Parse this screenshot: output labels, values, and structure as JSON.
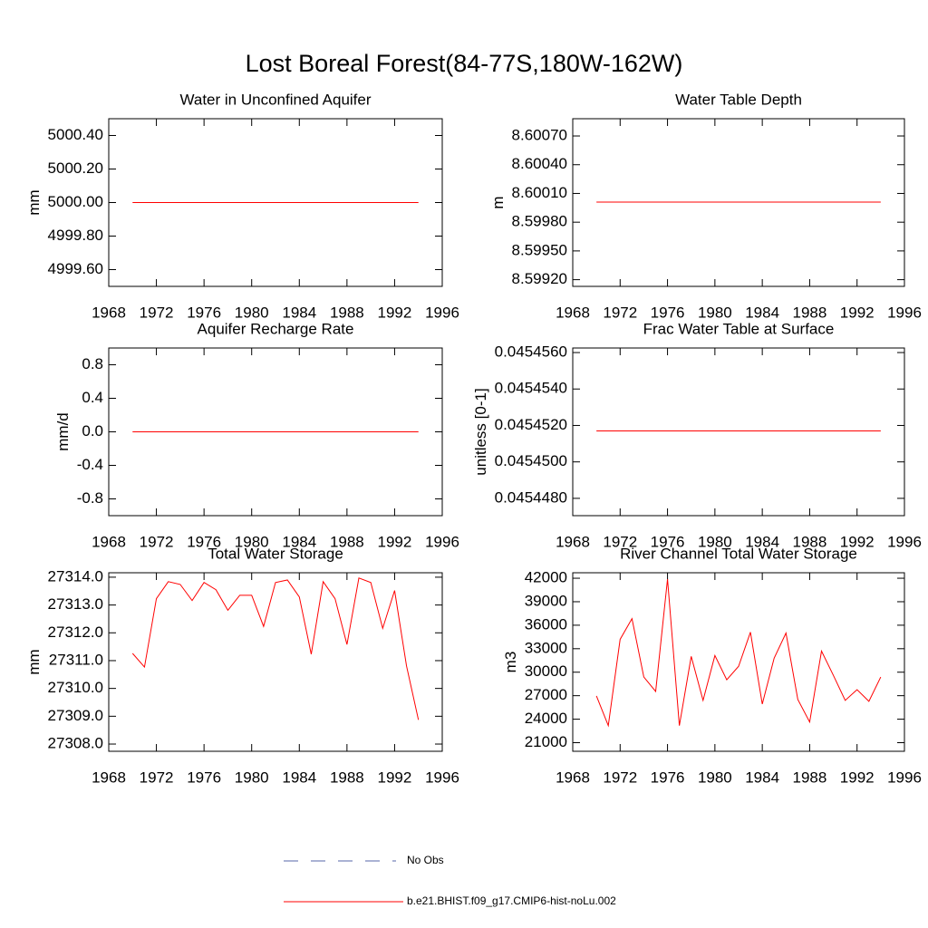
{
  "title": "Lost Boreal Forest(84-77S,180W-162W)",
  "legend": [
    {
      "name": "No Obs",
      "color": "#5566aa",
      "dashed": true
    },
    {
      "name": "b.e21.BHIST.f09_g17.CMIP6-hist-noLu.002",
      "color": "#ff0000",
      "dashed": false
    }
  ],
  "chart_data": [
    {
      "type": "line",
      "title": "Water in Unconfined Aquifer",
      "ylabel": "mm",
      "x": [
        1970,
        1971,
        1972,
        1973,
        1974,
        1975,
        1976,
        1977,
        1978,
        1979,
        1980,
        1981,
        1982,
        1983,
        1984,
        1985,
        1986,
        1987,
        1988,
        1989,
        1990,
        1991,
        1992,
        1993,
        1994
      ],
      "values": [
        5000,
        5000,
        5000,
        5000,
        5000,
        5000,
        5000,
        5000,
        5000,
        5000,
        5000,
        5000,
        5000,
        5000,
        5000,
        5000,
        5000,
        5000,
        5000,
        5000,
        5000,
        5000,
        5000,
        5000,
        5000
      ],
      "color": "#ff0000",
      "xlim": [
        1968,
        1996
      ],
      "xticks": [
        1968,
        1972,
        1976,
        1980,
        1984,
        1988,
        1992,
        1996
      ],
      "ylim": [
        4999.5,
        5000.5
      ],
      "yticks": [
        {
          "value": 5000.4,
          "label": "5000.40"
        },
        {
          "value": 5000.2,
          "label": "5000.20"
        },
        {
          "value": 5000,
          "label": "5000.00"
        },
        {
          "value": 4999.8,
          "label": "4999.80"
        },
        {
          "value": 4999.6,
          "label": "4999.60"
        }
      ]
    },
    {
      "type": "line",
      "title": "Water Table Depth",
      "ylabel": "m",
      "x": [
        1970,
        1971,
        1972,
        1973,
        1974,
        1975,
        1976,
        1977,
        1978,
        1979,
        1980,
        1981,
        1982,
        1983,
        1984,
        1985,
        1986,
        1987,
        1988,
        1989,
        1990,
        1991,
        1992,
        1993,
        1994
      ],
      "values": [
        8.60001,
        8.60001,
        8.60001,
        8.60001,
        8.60001,
        8.60001,
        8.60001,
        8.60001,
        8.60001,
        8.60001,
        8.60001,
        8.60001,
        8.60001,
        8.60001,
        8.60001,
        8.60001,
        8.60001,
        8.60001,
        8.60001,
        8.60001,
        8.60001,
        8.60001,
        8.60001,
        8.60001,
        8.60001
      ],
      "color": "#ff0000",
      "xlim": [
        1968,
        1996
      ],
      "xticks": [
        1968,
        1972,
        1976,
        1980,
        1984,
        1988,
        1992,
        1996
      ],
      "ylim": [
        8.59913,
        8.60088
      ],
      "yticks": [
        {
          "value": 8.6007,
          "label": "8.60070"
        },
        {
          "value": 8.6004,
          "label": "8.60040"
        },
        {
          "value": 8.6001,
          "label": "8.60010"
        },
        {
          "value": 8.5998,
          "label": "8.59980"
        },
        {
          "value": 8.5995,
          "label": "8.59950"
        },
        {
          "value": 8.5992,
          "label": "8.59920"
        }
      ]
    },
    {
      "type": "line",
      "title": "Aquifer Recharge Rate",
      "ylabel": "mm/d",
      "x": [
        1970,
        1971,
        1972,
        1973,
        1974,
        1975,
        1976,
        1977,
        1978,
        1979,
        1980,
        1981,
        1982,
        1983,
        1984,
        1985,
        1986,
        1987,
        1988,
        1989,
        1990,
        1991,
        1992,
        1993,
        1994
      ],
      "values": [
        0,
        0,
        0,
        0,
        0,
        0,
        0,
        0,
        0,
        0,
        0,
        0,
        0,
        0,
        0,
        0,
        0,
        0,
        0,
        0,
        0,
        0,
        0,
        0,
        0
      ],
      "color": "#ff0000",
      "xlim": [
        1968,
        1996
      ],
      "xticks": [
        1968,
        1972,
        1976,
        1980,
        1984,
        1988,
        1992,
        1996
      ],
      "ylim": [
        -1,
        1
      ],
      "yticks": [
        0.8,
        0.4,
        {
          "value": 0,
          "label": "0.0"
        },
        -0.4,
        -0.8
      ]
    },
    {
      "type": "line",
      "title": "Frac Water Table at Surface",
      "ylabel": "unitless [0-1]",
      "x": [
        1970,
        1971,
        1972,
        1973,
        1974,
        1975,
        1976,
        1977,
        1978,
        1979,
        1980,
        1981,
        1982,
        1983,
        1984,
        1985,
        1986,
        1987,
        1988,
        1989,
        1990,
        1991,
        1992,
        1993,
        1994
      ],
      "values": [
        0.0454517,
        0.0454517,
        0.0454517,
        0.0454517,
        0.0454517,
        0.0454517,
        0.0454517,
        0.0454517,
        0.0454517,
        0.0454517,
        0.0454517,
        0.0454517,
        0.0454517,
        0.0454517,
        0.0454517,
        0.0454517,
        0.0454517,
        0.0454517,
        0.0454517,
        0.0454517,
        0.0454517,
        0.0454517,
        0.0454517,
        0.0454517,
        0.0454517
      ],
      "color": "#ff0000",
      "xlim": [
        1968,
        1996
      ],
      "xticks": [
        1968,
        1972,
        1976,
        1980,
        1984,
        1988,
        1992,
        1996
      ],
      "ylim": [
        0.04544705,
        0.04545625
      ],
      "yticks": [
        {
          "value": 0.045456,
          "label": "0.0454560"
        },
        {
          "value": 0.045454,
          "label": "0.0454540"
        },
        {
          "value": 0.045452,
          "label": "0.0454520"
        },
        {
          "value": 0.04545,
          "label": "0.0454500"
        },
        {
          "value": 0.045448,
          "label": "0.0454480"
        }
      ]
    },
    {
      "type": "line",
      "title": "Total Water Storage",
      "ylabel": "mm",
      "x": [
        1970,
        1971,
        1972,
        1973,
        1974,
        1975,
        1976,
        1977,
        1978,
        1979,
        1980,
        1981,
        1982,
        1983,
        1984,
        1985,
        1986,
        1987,
        1988,
        1989,
        1990,
        1991,
        1992,
        1993,
        1994
      ],
      "values": [
        27311.26,
        27310.77,
        27313.23,
        27313.84,
        27313.74,
        27313.16,
        27313.81,
        27313.55,
        27312.81,
        27313.35,
        27313.35,
        27312.23,
        27313.81,
        27313.9,
        27313.29,
        27311.23,
        27313.84,
        27313.23,
        27311.58,
        27313.97,
        27313.81,
        27312.16,
        27313.52,
        27310.81,
        27308.87
      ],
      "color": "#ff0000",
      "xlim": [
        1968,
        1996
      ],
      "xticks": [
        1968,
        1972,
        1976,
        1980,
        1984,
        1988,
        1992,
        1996
      ],
      "ylim": [
        27307.74,
        27314.16
      ],
      "yticks": [
        {
          "value": 27314,
          "label": "27314.0"
        },
        {
          "value": 27313,
          "label": "27313.0"
        },
        {
          "value": 27312,
          "label": "27312.0"
        },
        {
          "value": 27311,
          "label": "27311.0"
        },
        {
          "value": 27310,
          "label": "27310.0"
        },
        {
          "value": 27309,
          "label": "27309.0"
        },
        {
          "value": 27308,
          "label": "27308.0"
        }
      ]
    },
    {
      "type": "line",
      "title": "River Channel Total Water Storage",
      "ylabel": "m3",
      "x": [
        1970,
        1971,
        1972,
        1973,
        1974,
        1975,
        1976,
        1977,
        1978,
        1979,
        1980,
        1981,
        1982,
        1983,
        1984,
        1985,
        1986,
        1987,
        1988,
        1989,
        1990,
        1991,
        1992,
        1993,
        1994
      ],
      "values": [
        26970,
        23180,
        34200,
        36840,
        29380,
        27540,
        41890,
        23180,
        32020,
        26400,
        32130,
        29030,
        30750,
        35110,
        25930,
        31790,
        35000,
        26510,
        23640,
        32700,
        29600,
        26400,
        27770,
        26280,
        29380
      ],
      "color": "#ff0000",
      "xlim": [
        1968,
        1996
      ],
      "xticks": [
        1968,
        1972,
        1976,
        1980,
        1984,
        1988,
        1992,
        1996
      ],
      "ylim": [
        19900,
        42700
      ],
      "yticks": [
        42000,
        39000,
        36000,
        33000,
        30000,
        27000,
        24000,
        21000
      ]
    }
  ]
}
